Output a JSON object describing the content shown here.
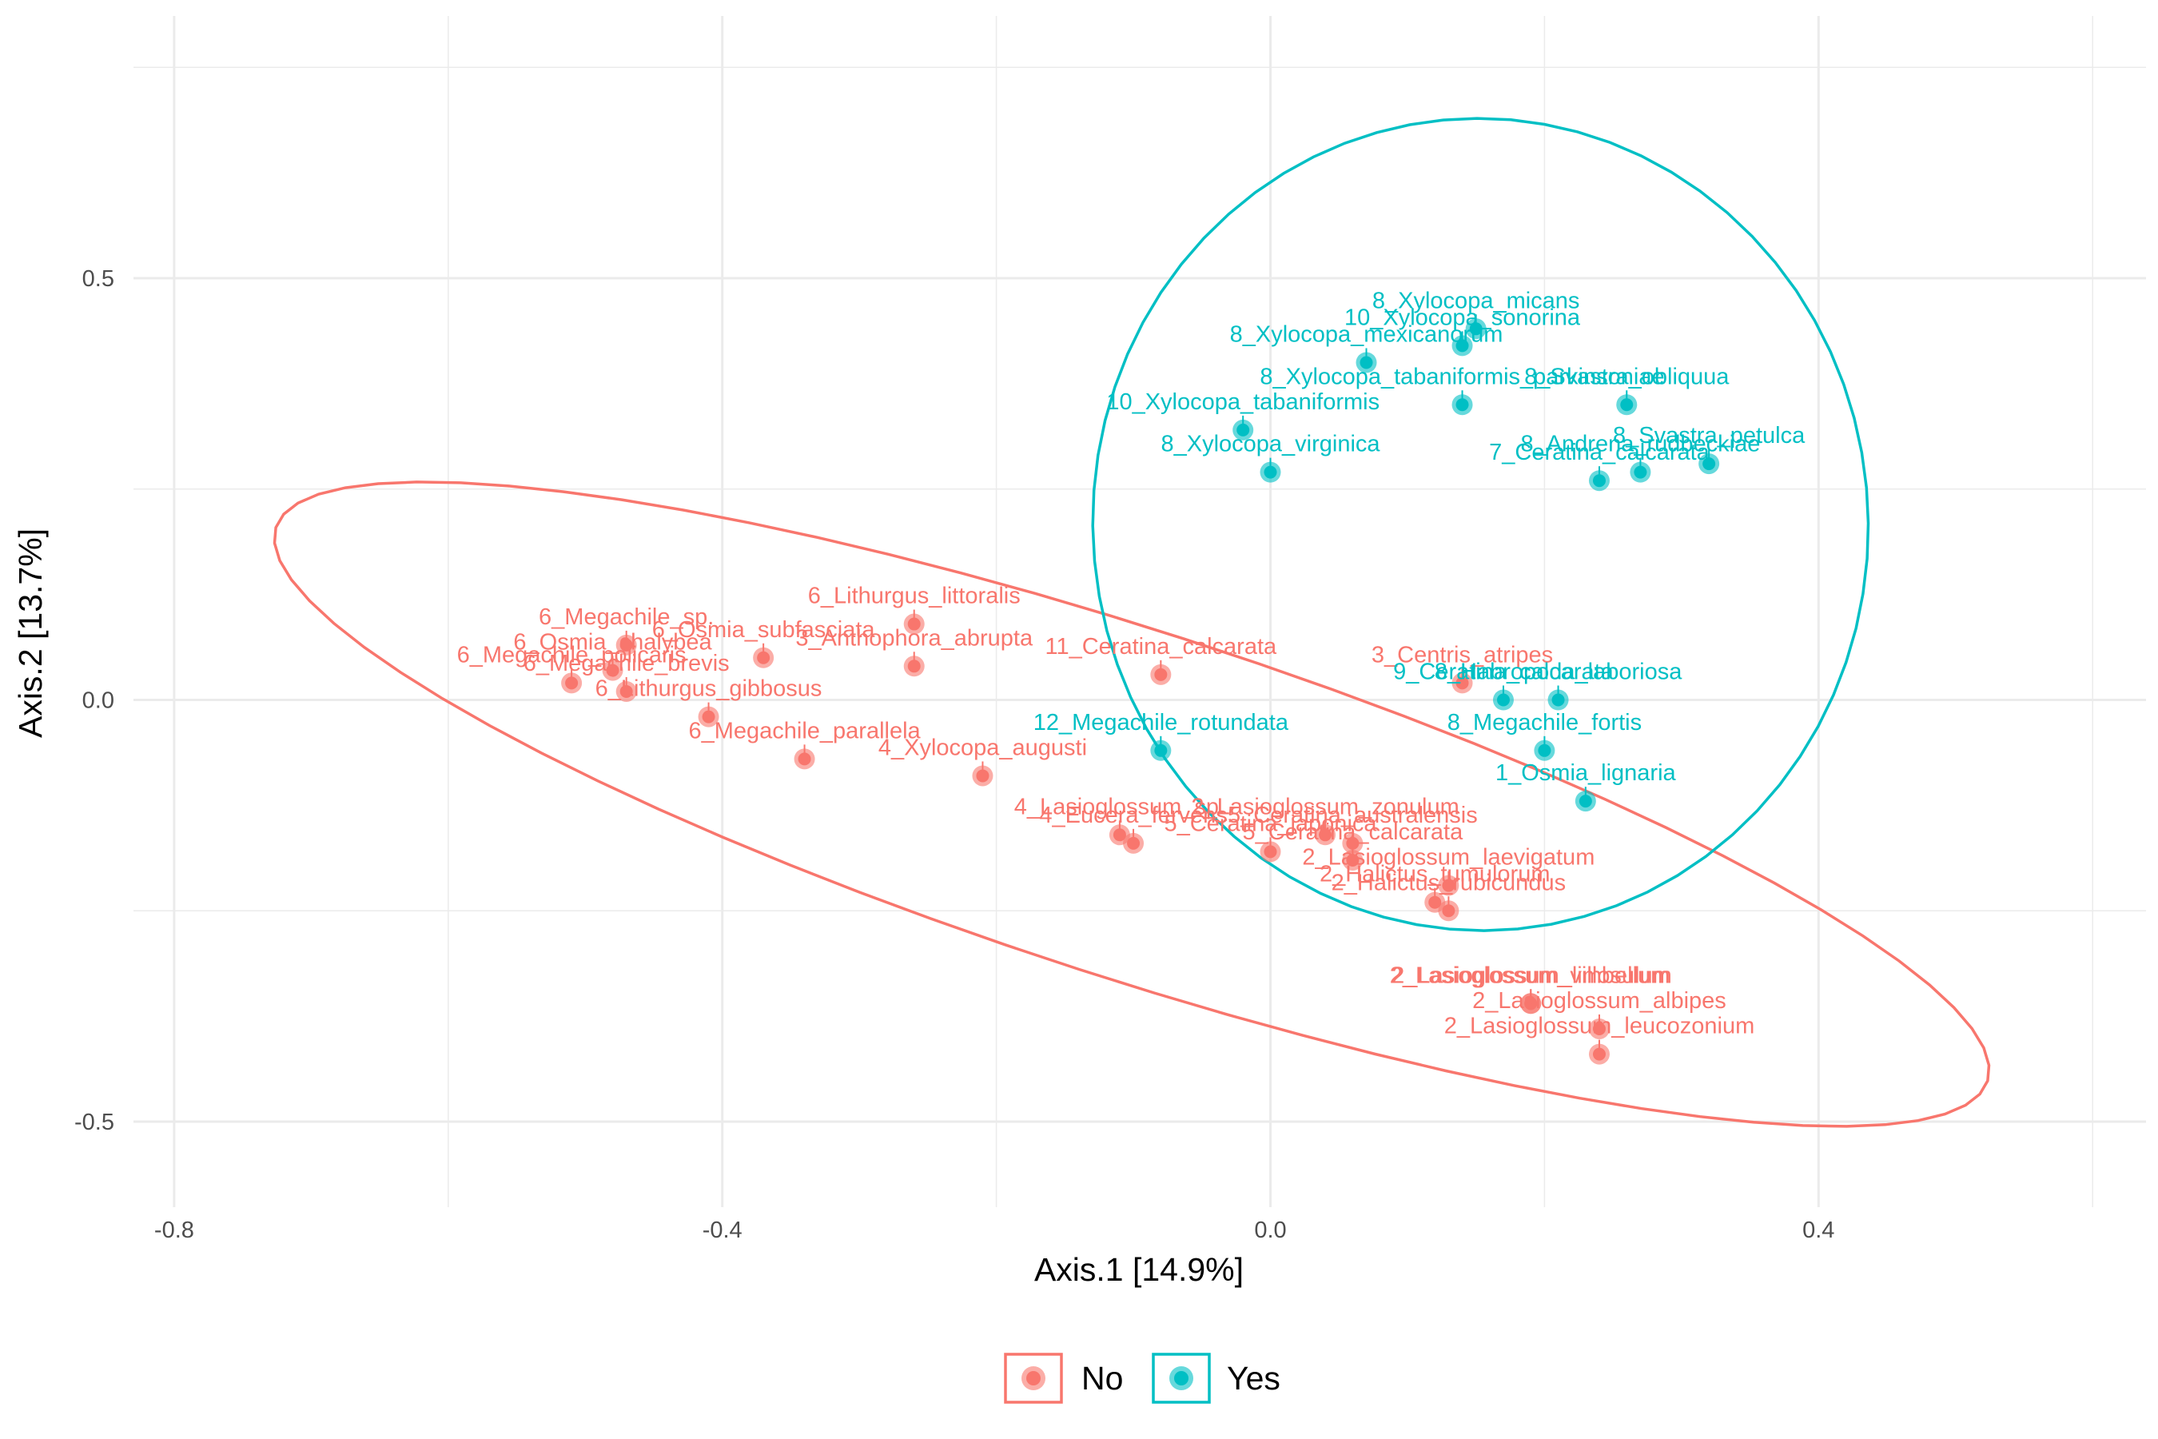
{
  "chart_data": {
    "type": "scatter",
    "xlabel": "Axis.1   [14.9%]",
    "ylabel": "Axis.2   [13.7%]",
    "xlim": [
      -0.83,
      0.64
    ],
    "ylim": [
      -0.59,
      0.8
    ],
    "x_ticks": [
      -0.8,
      -0.4,
      0.0,
      0.4
    ],
    "x_tick_labels": [
      "-0.8",
      "-0.4",
      "0.0",
      "0.4"
    ],
    "y_ticks": [
      0.5,
      0.0,
      -0.5
    ],
    "y_tick_labels": [
      "0.5",
      "0.0",
      "-0.5"
    ],
    "grid": true,
    "legend_position": "bottom",
    "colors": {
      "No": "#F8766D",
      "Yes": "#00BFC4",
      "grid": "#EBEBEB",
      "text": "#4d4d4d"
    },
    "series": [
      {
        "name": "No",
        "legend_label": "No",
        "points": [
          {
            "label": "6_Megachile_policaris",
            "x": -0.51,
            "y": 0.02
          },
          {
            "label": "6_Osmia_chalybea",
            "x": -0.48,
            "y": 0.035
          },
          {
            "label": "6_Megachile_sp.",
            "x": -0.47,
            "y": 0.065
          },
          {
            "label": "6_Megachile_brevis",
            "x": -0.47,
            "y": 0.01
          },
          {
            "label": "6_Megachile_parallela",
            "x": -0.34,
            "y": -0.07
          },
          {
            "label": "6_Lithurgus_gibbosus",
            "x": -0.41,
            "y": -0.02
          },
          {
            "label": "6_Osmia_subfasciata",
            "x": -0.37,
            "y": 0.05
          },
          {
            "label": "6_Lithurgus_littoralis",
            "x": -0.26,
            "y": 0.09
          },
          {
            "label": "3_Anthophora_abrupta",
            "x": -0.26,
            "y": 0.04
          },
          {
            "label": "4_Xylocopa_augusti",
            "x": -0.21,
            "y": -0.09
          },
          {
            "label": "11_Ceratina_calcarata",
            "x": -0.08,
            "y": 0.03
          },
          {
            "label": "4_Lasioglossum_sp.",
            "x": -0.11,
            "y": -0.16
          },
          {
            "label": "4_Eucera_fervens",
            "x": -0.1,
            "y": -0.17
          },
          {
            "label": "5_Ceratina_japonica",
            "x": 0.0,
            "y": -0.18
          },
          {
            "label": "2_Lasioglossum_zonulum",
            "x": 0.04,
            "y": -0.16
          },
          {
            "label": "5_Ceratina_australensis",
            "x": 0.06,
            "y": -0.17
          },
          {
            "label": "5_Ceratina_calcarata",
            "x": 0.06,
            "y": -0.19
          },
          {
            "label": "2_Halictus_tumulorum",
            "x": 0.12,
            "y": -0.24
          },
          {
            "label": "2_Lasioglossum_laevigatum",
            "x": 0.13,
            "y": -0.22
          },
          {
            "label": "2_Halictus_rubicundus",
            "x": 0.13,
            "y": -0.25
          },
          {
            "label": "3_Centris_atripes",
            "x": 0.14,
            "y": 0.02
          },
          {
            "label": "2_Lasioglossum_villosulum",
            "x": 0.19,
            "y": -0.36
          },
          {
            "label": "2_Lasioglossum_limbellum",
            "x": 0.19,
            "y": -0.36
          },
          {
            "label": "2_Lasioglossum_albipes",
            "x": 0.24,
            "y": -0.39
          },
          {
            "label": "2_Lasioglossum_leucozonium",
            "x": 0.24,
            "y": -0.42
          }
        ]
      },
      {
        "name": "Yes",
        "legend_label": "Yes",
        "points": [
          {
            "label": "8_Xylocopa_micans",
            "x": 0.15,
            "y": 0.44
          },
          {
            "label": "10_Xylocopa_sonorina",
            "x": 0.14,
            "y": 0.42
          },
          {
            "label": "8_Xylocopa_mexicanorum",
            "x": 0.07,
            "y": 0.4
          },
          {
            "label": "8_Xylocopa_tabaniformis_parkinsoniae",
            "x": 0.14,
            "y": 0.35
          },
          {
            "label": "10_Xylocopa_tabaniformis",
            "x": -0.02,
            "y": 0.32
          },
          {
            "label": "8_Xylocopa_virginica",
            "x": 0.0,
            "y": 0.27
          },
          {
            "label": "8_Svastra_obliquua",
            "x": 0.26,
            "y": 0.35
          },
          {
            "label": "8_Svastra_petulca",
            "x": 0.32,
            "y": 0.28
          },
          {
            "label": "8_Andrena_rudbeckiae",
            "x": 0.27,
            "y": 0.27
          },
          {
            "label": "7_Ceratina_calcarata",
            "x": 0.24,
            "y": 0.26
          },
          {
            "label": "9_Ceratina_calcarata",
            "x": 0.17,
            "y": 0.0
          },
          {
            "label": "8_Habropoda_laboriosa",
            "x": 0.21,
            "y": 0.0
          },
          {
            "label": "8_Megachile_fortis",
            "x": 0.2,
            "y": -0.06
          },
          {
            "label": "12_Megachile_rotundata",
            "x": -0.08,
            "y": -0.06
          },
          {
            "label": "1_Osmia_lignaria",
            "x": 0.23,
            "y": -0.12
          }
        ]
      }
    ]
  }
}
